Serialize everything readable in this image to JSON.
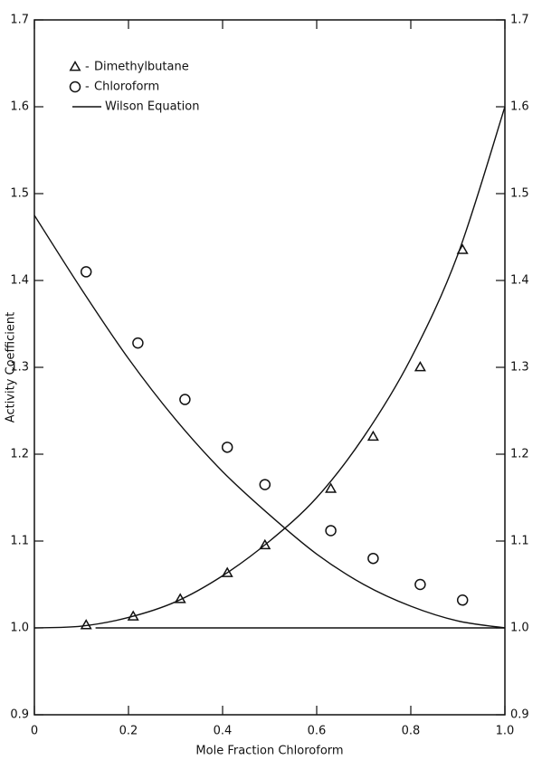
{
  "chart_data": {
    "type": "scatter",
    "xlabel": "Mole Fraction Chloroform",
    "ylabel": "Activity Coefficient",
    "xlim": [
      0,
      1.0
    ],
    "ylim": [
      0.9,
      1.7
    ],
    "xticks": [
      0,
      0.2,
      0.4,
      0.6,
      0.8,
      {
        "value": 1.0,
        "label": "1.0"
      }
    ],
    "yticks": [
      0.9,
      {
        "value": 1.0,
        "label": "1.0"
      },
      1.1,
      1.2,
      1.3,
      1.4,
      1.5,
      1.6,
      1.7
    ],
    "color": "#111111",
    "series": [
      {
        "name": "Dimethylbutane",
        "marker": "triangle",
        "x": [
          0.11,
          0.21,
          0.31,
          0.41,
          0.49,
          0.63,
          0.72,
          0.82,
          0.91
        ],
        "values": [
          1.003,
          1.013,
          1.033,
          1.063,
          1.095,
          1.16,
          1.22,
          1.3,
          1.435
        ]
      },
      {
        "name": "Chloroform",
        "marker": "circle",
        "x": [
          0.11,
          0.22,
          0.32,
          0.41,
          0.49,
          0.63,
          0.72,
          0.82,
          0.91
        ],
        "values": [
          1.41,
          1.328,
          1.263,
          1.208,
          1.165,
          1.112,
          1.08,
          1.05,
          1.032
        ]
      },
      {
        "name": "Wilson Equation",
        "marker": "line",
        "curves": [
          {
            "x": [
              0,
              0.1,
              0.2,
              0.3,
              0.4,
              0.5,
              0.6,
              0.7,
              0.8,
              0.9,
              1.0
            ],
            "values": [
              1.0,
              1.002,
              1.012,
              1.03,
              1.06,
              1.1,
              1.15,
              1.22,
              1.31,
              1.43,
              1.6
            ]
          },
          {
            "x": [
              0,
              0.1,
              0.2,
              0.3,
              0.4,
              0.5,
              0.6,
              0.7,
              0.8,
              0.9,
              1.0
            ],
            "values": [
              1.475,
              1.39,
              1.31,
              1.24,
              1.18,
              1.13,
              1.085,
              1.05,
              1.025,
              1.008,
              1.0
            ]
          },
          {
            "x": [
              0.13,
              1.0
            ],
            "values": [
              1.0,
              1.0
            ]
          }
        ]
      }
    ]
  }
}
